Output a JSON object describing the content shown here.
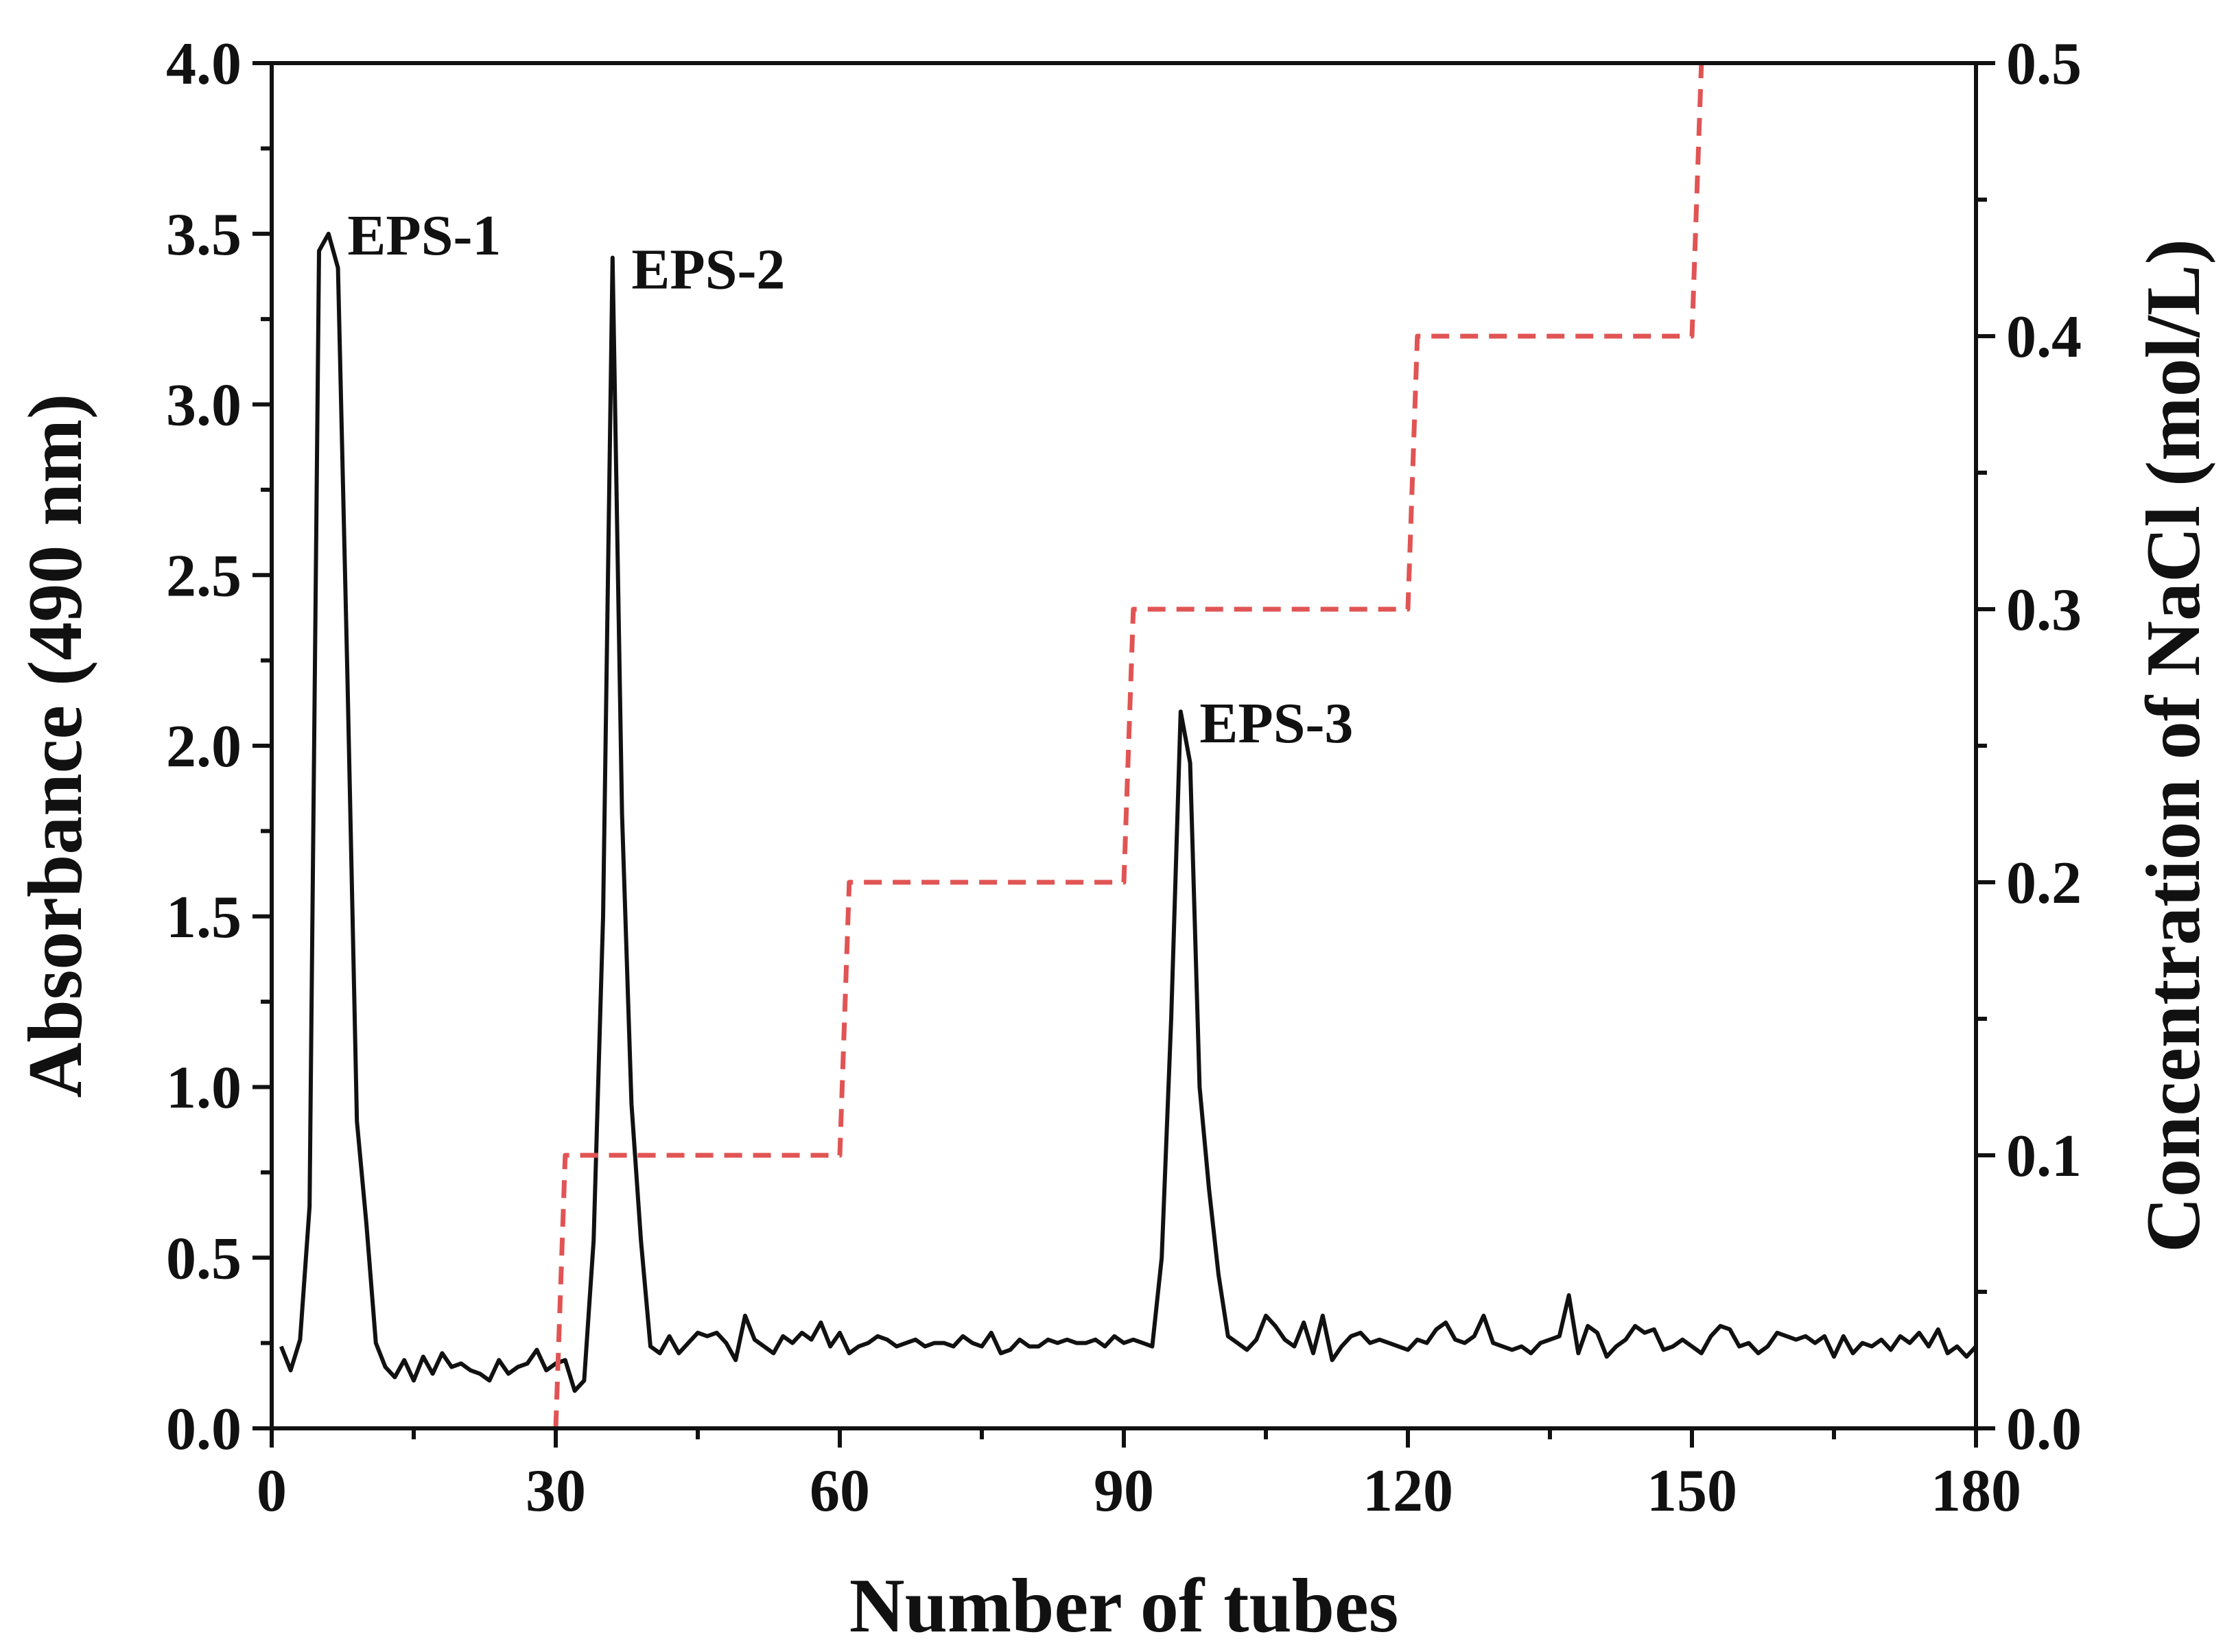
{
  "chart_data": {
    "type": "line",
    "xlabel": "Number of tubes",
    "ylabel": "Absorbance (490 nm)",
    "y2label": "Concentration of NaCl (mol/L)",
    "xlim": [
      0,
      180
    ],
    "ylim": [
      0,
      4.0
    ],
    "y2lim": [
      0,
      0.5
    ],
    "x_ticks": [
      "0",
      "30",
      "60",
      "90",
      "120",
      "150",
      "180"
    ],
    "y_ticks": [
      "0.0",
      "0.5",
      "1.0",
      "1.5",
      "2.0",
      "2.5",
      "3.0",
      "3.5",
      "4.0"
    ],
    "y2_ticks": [
      "0.0",
      "0.1",
      "0.2",
      "0.3",
      "0.4",
      "0.5"
    ],
    "grid": false,
    "series": [
      {
        "name": "Absorbance (490 nm)",
        "axis": "left",
        "color": "#111111",
        "style": "solid",
        "x": [
          1,
          2,
          3,
          4,
          5,
          6,
          7,
          8,
          9,
          10,
          11,
          12,
          13,
          14,
          15,
          16,
          17,
          18,
          19,
          20,
          21,
          22,
          23,
          24,
          25,
          26,
          27,
          28,
          29,
          30,
          31,
          32,
          33,
          34,
          35,
          36,
          37,
          38,
          39,
          40,
          41,
          42,
          43,
          44,
          45,
          46,
          47,
          48,
          49,
          50,
          51,
          52,
          53,
          54,
          55,
          56,
          57,
          58,
          59,
          60,
          61,
          62,
          63,
          64,
          65,
          66,
          67,
          68,
          69,
          70,
          71,
          72,
          73,
          74,
          75,
          76,
          77,
          78,
          79,
          80,
          81,
          82,
          83,
          84,
          85,
          86,
          87,
          88,
          89,
          90,
          91,
          92,
          93,
          94,
          95,
          96,
          97,
          98,
          99,
          100,
          101,
          102,
          103,
          104,
          105,
          106,
          107,
          108,
          109,
          110,
          111,
          112,
          113,
          114,
          115,
          116,
          117,
          118,
          119,
          120,
          121,
          122,
          123,
          124,
          125,
          126,
          127,
          128,
          129,
          130,
          131,
          132,
          133,
          134,
          135,
          136,
          137,
          138,
          139,
          140,
          141,
          142,
          143,
          144,
          145,
          146,
          147,
          148,
          149,
          150,
          151,
          152,
          153,
          154,
          155,
          156,
          157,
          158,
          159,
          160,
          161,
          162,
          163,
          164,
          165,
          166,
          167,
          168,
          169,
          170,
          171,
          172,
          173,
          174,
          175,
          176,
          177,
          178,
          179,
          180
        ],
        "values": [
          0.24,
          0.17,
          0.26,
          0.65,
          3.45,
          3.5,
          3.4,
          2.2,
          0.9,
          0.6,
          0.25,
          0.18,
          0.15,
          0.2,
          0.14,
          0.21,
          0.16,
          0.22,
          0.18,
          0.19,
          0.17,
          0.16,
          0.14,
          0.2,
          0.16,
          0.18,
          0.19,
          0.23,
          0.17,
          0.19,
          0.2,
          0.11,
          0.14,
          0.55,
          1.5,
          3.43,
          1.8,
          0.95,
          0.55,
          0.24,
          0.22,
          0.27,
          0.22,
          0.25,
          0.28,
          0.27,
          0.28,
          0.25,
          0.2,
          0.33,
          0.26,
          0.24,
          0.22,
          0.27,
          0.25,
          0.28,
          0.26,
          0.31,
          0.24,
          0.28,
          0.22,
          0.24,
          0.25,
          0.27,
          0.26,
          0.24,
          0.25,
          0.26,
          0.24,
          0.25,
          0.25,
          0.24,
          0.27,
          0.25,
          0.24,
          0.28,
          0.22,
          0.23,
          0.26,
          0.24,
          0.24,
          0.26,
          0.25,
          0.26,
          0.25,
          0.25,
          0.26,
          0.24,
          0.27,
          0.25,
          0.26,
          0.25,
          0.24,
          0.5,
          1.2,
          2.1,
          1.95,
          1.0,
          0.7,
          0.45,
          0.27,
          0.25,
          0.23,
          0.26,
          0.33,
          0.3,
          0.26,
          0.24,
          0.31,
          0.22,
          0.33,
          0.2,
          0.24,
          0.27,
          0.28,
          0.25,
          0.26,
          0.25,
          0.24,
          0.23,
          0.26,
          0.25,
          0.29,
          0.31,
          0.26,
          0.25,
          0.27,
          0.33,
          0.25,
          0.24,
          0.23,
          0.24,
          0.22,
          0.25,
          0.26,
          0.27,
          0.39,
          0.22,
          0.3,
          0.28,
          0.21,
          0.24,
          0.26,
          0.3,
          0.28,
          0.29,
          0.23,
          0.24,
          0.26,
          0.24,
          0.22,
          0.27,
          0.3,
          0.29,
          0.24,
          0.25,
          0.22,
          0.24,
          0.28,
          0.27,
          0.26,
          0.27,
          0.25,
          0.27,
          0.21,
          0.27,
          0.22,
          0.25,
          0.24,
          0.26,
          0.23,
          0.27,
          0.25,
          0.28,
          0.24,
          0.29,
          0.22,
          0.24,
          0.21,
          0.24
        ]
      },
      {
        "name": "Concentration of NaCl (mol/L)",
        "axis": "right",
        "color": "#e15454",
        "style": "dashed",
        "x": [
          30,
          31,
          31,
          60,
          61,
          61,
          90,
          91,
          91,
          120,
          121,
          121,
          150,
          151,
          151
        ],
        "values": [
          0.0,
          0.1,
          0.1,
          0.1,
          0.2,
          0.2,
          0.2,
          0.3,
          0.3,
          0.3,
          0.4,
          0.4,
          0.4,
          0.5,
          0.5
        ]
      }
    ],
    "annotations": [
      {
        "text": "EPS-1",
        "x": 8,
        "y": 3.5
      },
      {
        "text": "EPS-2",
        "x": 38,
        "y": 3.4
      },
      {
        "text": "EPS-3",
        "x": 98,
        "y": 2.07
      }
    ]
  }
}
